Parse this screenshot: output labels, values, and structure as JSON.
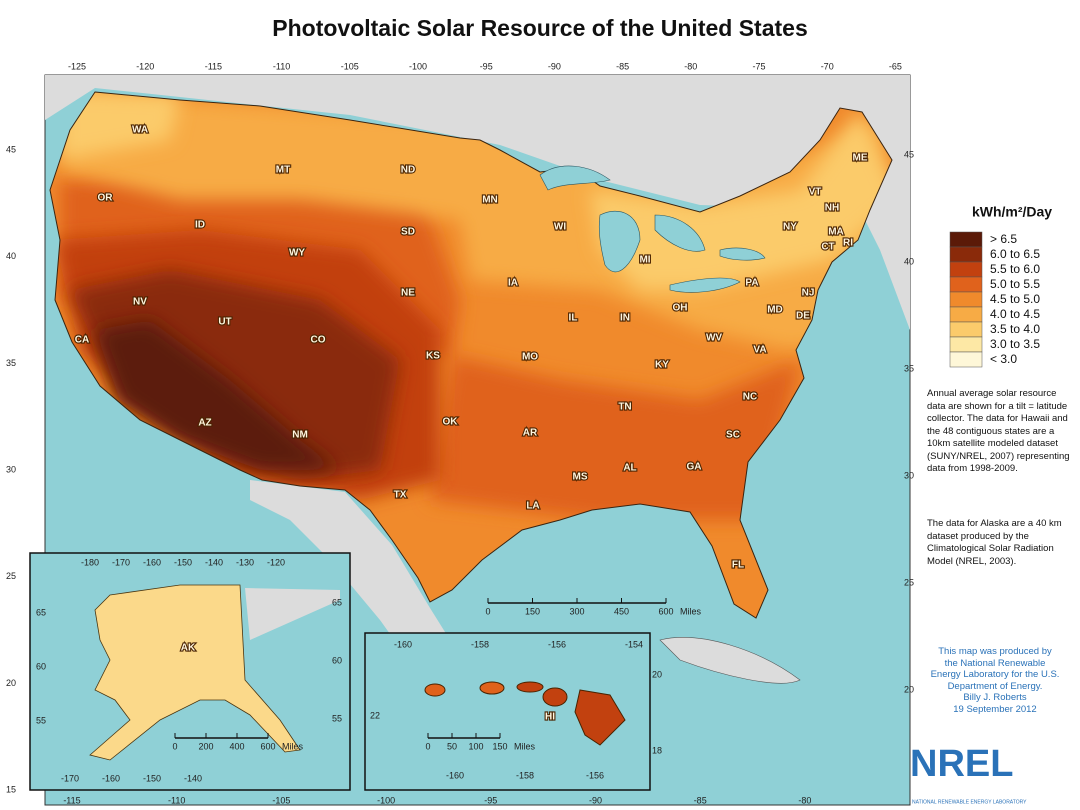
{
  "title": "Photovoltaic Solar Resource of the United States",
  "legend": {
    "title": "kWh/m²/Day",
    "items": [
      {
        "label": "> 6.5",
        "color": "#5b1a08"
      },
      {
        "label": "6.0 to 6.5",
        "color": "#8a2a0a"
      },
      {
        "label": "5.5 to 6.0",
        "color": "#c2410f"
      },
      {
        "label": "5.0 to 5.5",
        "color": "#e0621c"
      },
      {
        "label": "4.5 to 5.0",
        "color": "#f08a2c"
      },
      {
        "label": "4.0 to 4.5",
        "color": "#f7ab45"
      },
      {
        "label": "3.5 to 4.0",
        "color": "#fbcb6b"
      },
      {
        "label": "3.0 to 3.5",
        "color": "#fde8a5"
      },
      {
        "label": "< 3.0",
        "color": "#fef7d8"
      }
    ]
  },
  "description": [
    "Annual average solar resource data are shown for a tilt = latitude collector. The data for Hawaii and the 48 contiguous states are a 10km satellite modeled dataset (SUNY/NREL, 2007) representing data from 1998-2009.",
    "The data for Alaska are a 40 km dataset produced by the Climatological Solar Radiation Model (NREL, 2003)."
  ],
  "credit": [
    "This map was produced by",
    "the National Renewable",
    "Energy Laboratory for the U.S.",
    "Department of Energy.",
    "Billy J. Roberts",
    "19 September 2012"
  ],
  "logo": "NREL",
  "logo_sub": "NATIONAL RENEWABLE ENERGY LABORATORY",
  "states": [
    "WA",
    "OR",
    "ID",
    "MT",
    "ND",
    "MN",
    "WI",
    "MI",
    "NY",
    "VT",
    "NH",
    "ME",
    "MA",
    "CT",
    "RI",
    "WY",
    "SD",
    "NE",
    "IA",
    "IL",
    "IN",
    "OH",
    "PA",
    "NJ",
    "MD",
    "DE",
    "NV",
    "UT",
    "CO",
    "KS",
    "MO",
    "KY",
    "WV",
    "VA",
    "CA",
    "AZ",
    "NM",
    "OK",
    "AR",
    "TN",
    "NC",
    "SC",
    "TX",
    "LA",
    "MS",
    "AL",
    "GA",
    "FL"
  ],
  "grid": {
    "top": [
      -125,
      -120,
      -115,
      -110,
      -105,
      -100,
      -95,
      -90,
      -85,
      -80,
      -75,
      -70,
      -65
    ],
    "bottom": [
      -115,
      -110,
      -105,
      -100,
      -95,
      -90,
      -85,
      -80
    ],
    "left": [
      45,
      40,
      35,
      30,
      25,
      20,
      15
    ],
    "right": [
      45,
      40,
      35,
      30,
      25,
      20
    ]
  },
  "main_scale": {
    "ticks": [
      0,
      150,
      300,
      450,
      600
    ],
    "unit": "Miles"
  },
  "alaska": {
    "label": "AK",
    "top": [
      -180,
      -170,
      -160,
      -150,
      -140,
      -130,
      -120
    ],
    "bottom": [
      -170,
      -160,
      -150,
      -140
    ],
    "left": [
      65,
      60,
      55
    ],
    "right": [
      65,
      60,
      55
    ],
    "scale": {
      "ticks": [
        0,
        200,
        400,
        600
      ],
      "unit": "Miles"
    }
  },
  "hawaii": {
    "label": "HI",
    "top": [
      -160,
      -158,
      -156,
      -154
    ],
    "bottom": [
      -160,
      -158,
      -156
    ],
    "left": [
      22
    ],
    "right": [
      20,
      18
    ],
    "scale": {
      "ticks": [
        0,
        50,
        100,
        150
      ],
      "unit": "Miles"
    }
  }
}
